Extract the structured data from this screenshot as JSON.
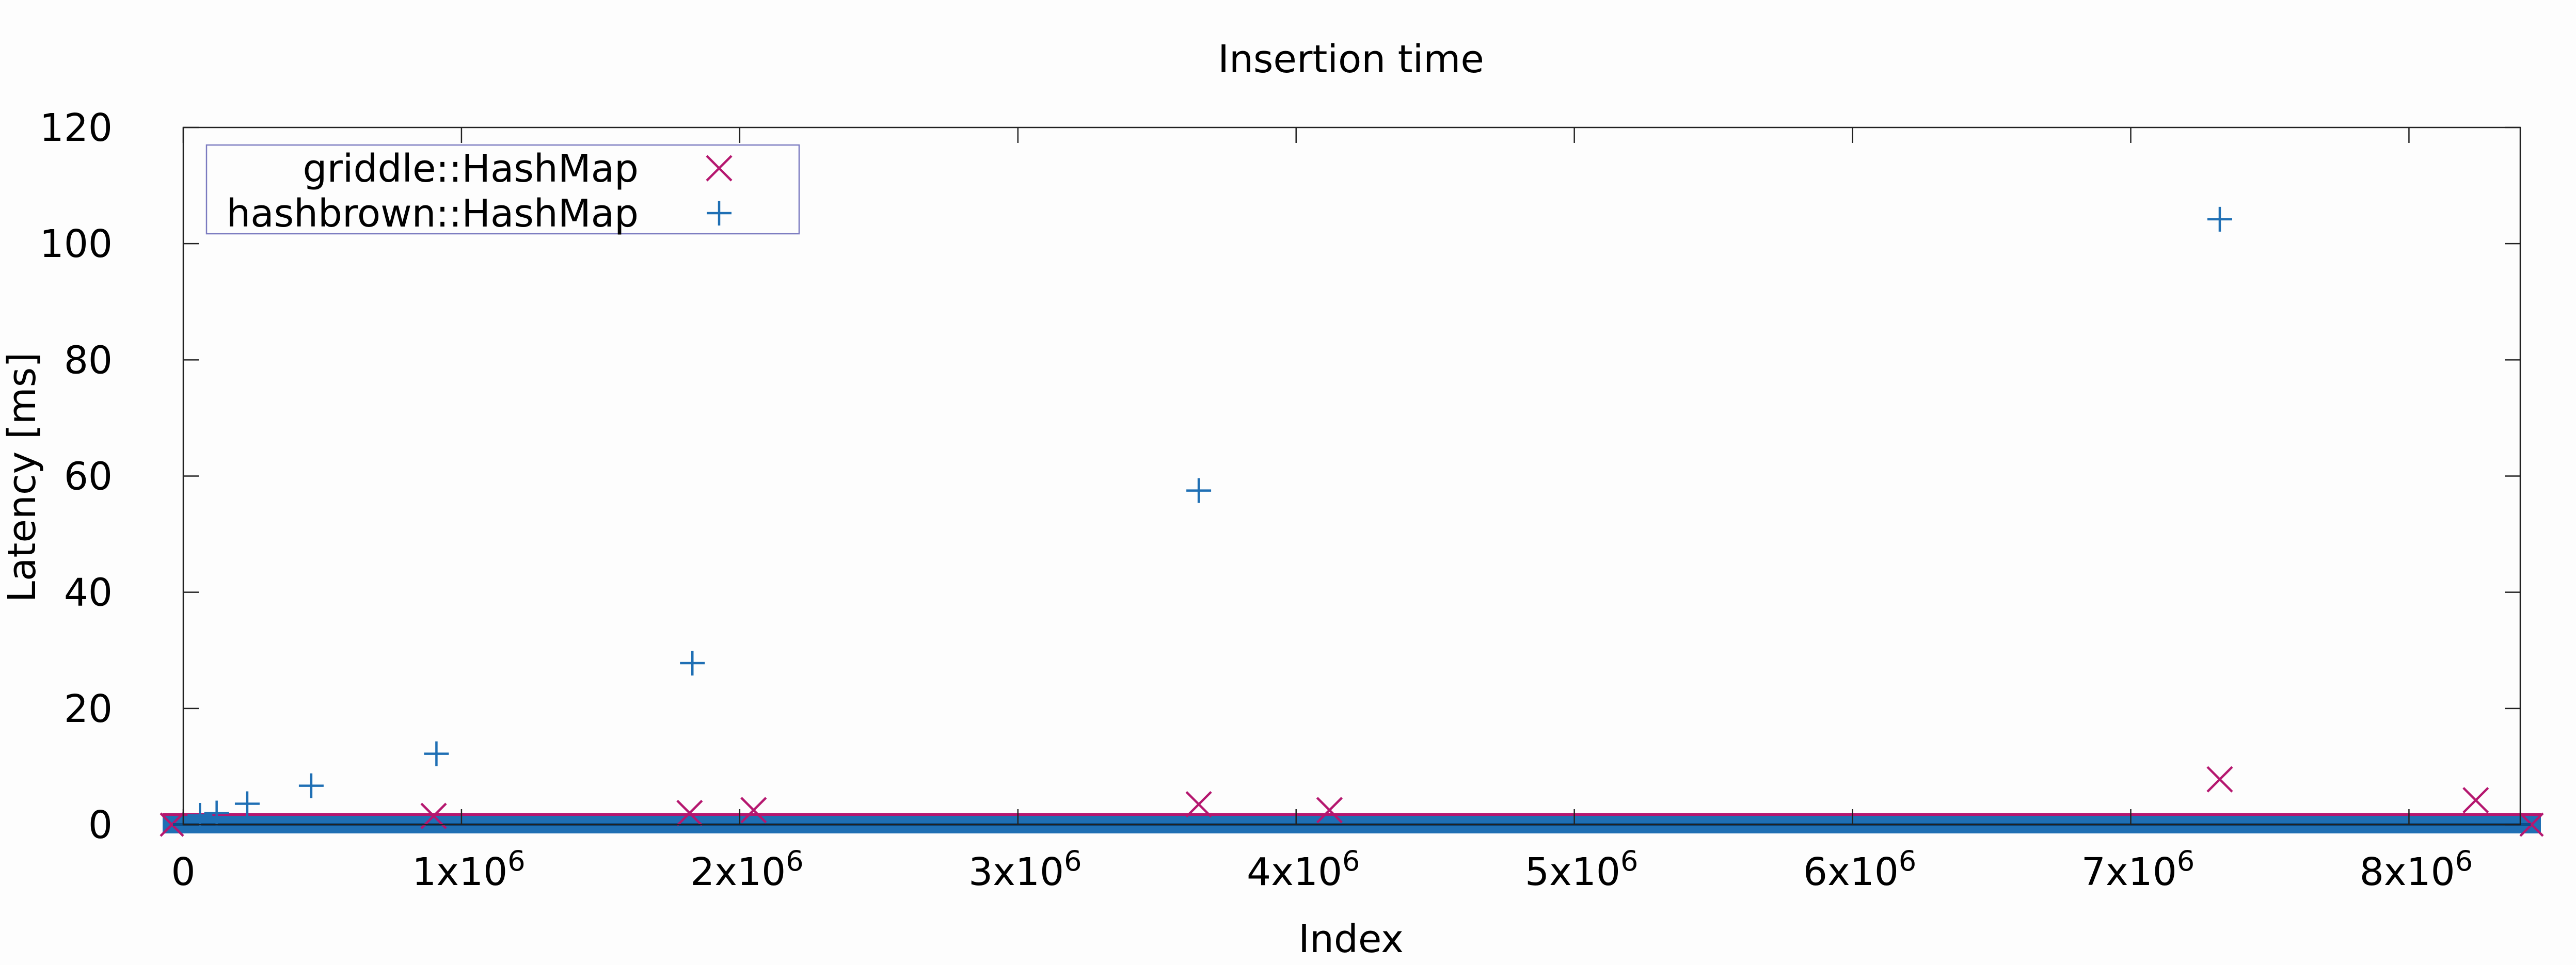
{
  "chart_data": {
    "type": "scatter",
    "title": "Insertion time",
    "xlabel": "Index",
    "ylabel": "Latency [ms]",
    "xlim": [
      0,
      8400000
    ],
    "ylim": [
      0,
      120
    ],
    "x_ticks": [
      {
        "value": 0,
        "label": "0",
        "sup": ""
      },
      {
        "value": 1000000,
        "label": "1x10",
        "sup": "6"
      },
      {
        "value": 2000000,
        "label": "2x10",
        "sup": "6"
      },
      {
        "value": 3000000,
        "label": "3x10",
        "sup": "6"
      },
      {
        "value": 4000000,
        "label": "4x10",
        "sup": "6"
      },
      {
        "value": 5000000,
        "label": "5x10",
        "sup": "6"
      },
      {
        "value": 6000000,
        "label": "6x10",
        "sup": "6"
      },
      {
        "value": 7000000,
        "label": "7x10",
        "sup": "6"
      },
      {
        "value": 8000000,
        "label": "8x10",
        "sup": "6"
      }
    ],
    "y_ticks": [
      {
        "value": 0,
        "label": "0"
      },
      {
        "value": 20,
        "label": "20"
      },
      {
        "value": 40,
        "label": "40"
      },
      {
        "value": 60,
        "label": "60"
      },
      {
        "value": 80,
        "label": "80"
      },
      {
        "value": 100,
        "label": "100"
      },
      {
        "value": 120,
        "label": "120"
      }
    ],
    "grid": false,
    "legend_position": "top-left",
    "series": [
      {
        "name": "griddle::HashMap",
        "marker": "x",
        "color": "#b5176f",
        "points": [
          [
            900000,
            1.5
          ],
          [
            1820000,
            2.0
          ],
          [
            2050000,
            2.5
          ],
          [
            3650000,
            3.5
          ],
          [
            4120000,
            2.5
          ],
          [
            7320000,
            7.8
          ],
          [
            8240000,
            4.2
          ]
        ],
        "baseline": {
          "x_from": 0,
          "x_to": 8400000,
          "y_min": 0,
          "y_max": 1.3
        }
      },
      {
        "name": "hashbrown::HashMap",
        "marker": "+",
        "color": "#1f6fb4",
        "points": [
          [
            230000,
            3.6
          ],
          [
            460000,
            6.7
          ],
          [
            910000,
            12.2
          ],
          [
            1830000,
            27.8
          ],
          [
            3650000,
            57.5
          ],
          [
            7320000,
            104.2
          ],
          [
            120000,
            2.0
          ],
          [
            60000,
            1.6
          ]
        ],
        "baseline": {
          "x_from": 0,
          "x_to": 8400000,
          "y_min": -0.8,
          "y_max": 0.8
        }
      }
    ]
  }
}
